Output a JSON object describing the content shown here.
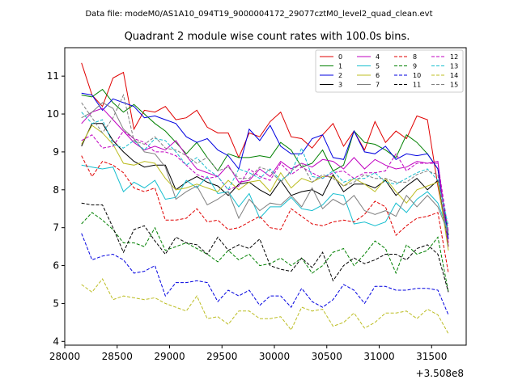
{
  "chart_data": {
    "type": "line",
    "suptitle": "Data file: modeM0/AS1A10_094T19_9000004172_29077cztM0_level2_quad_clean.evt",
    "title": "Quadrant 2 module wise count rates with 100.0s bins.",
    "xlabel": "",
    "ylabel": "",
    "x_offset_label": "+3.508e8",
    "xlim": [
      28000,
      31830
    ],
    "ylim": [
      3.9,
      11.75
    ],
    "xticks": [
      28000,
      28500,
      29000,
      29500,
      30000,
      30500,
      31000,
      31500
    ],
    "xtick_labels": [
      "28000",
      "28500",
      "29000",
      "29500",
      "30000",
      "30500",
      "31000",
      "31500"
    ],
    "yticks": [
      4,
      5,
      6,
      7,
      8,
      9,
      10,
      11
    ],
    "ytick_labels": [
      "4",
      "5",
      "6",
      "7",
      "8",
      "9",
      "10",
      "11"
    ],
    "legend_position": "top-right",
    "x": [
      28160,
      28260,
      28360,
      28460,
      28560,
      28660,
      28760,
      28860,
      28960,
      29060,
      29160,
      29260,
      29360,
      29460,
      29560,
      29660,
      29760,
      29860,
      29960,
      30060,
      30160,
      30260,
      30360,
      30460,
      30560,
      30660,
      30760,
      30860,
      30960,
      31060,
      31160,
      31260,
      31360,
      31460,
      31560,
      31660
    ],
    "series": [
      {
        "name": "0",
        "color": "#e00000",
        "dash": "solid",
        "values": [
          11.35,
          10.5,
          10.2,
          10.95,
          11.1,
          9.6,
          10.1,
          10.05,
          10.2,
          9.85,
          9.9,
          10.1,
          9.65,
          9.5,
          9.5,
          8.85,
          9.5,
          9.4,
          9.8,
          10.05,
          9.4,
          9.35,
          9.1,
          9.45,
          9.75,
          9.15,
          9.55,
          9.05,
          9.8,
          9.25,
          9.55,
          9.35,
          9.95,
          9.85,
          8.1,
          6.6
        ]
      },
      {
        "name": "1",
        "color": "#008000",
        "dash": "solid",
        "values": [
          10.5,
          10.45,
          10.65,
          10.3,
          10.05,
          10.25,
          10.0,
          9.75,
          9.55,
          9.25,
          8.95,
          9.25,
          8.85,
          8.5,
          8.95,
          8.85,
          8.85,
          8.9,
          8.85,
          9.25,
          9.05,
          8.6,
          8.7,
          9.05,
          8.5,
          8.65,
          9.55,
          9.25,
          9.2,
          9.05,
          8.85,
          9.45,
          9.25,
          8.95,
          8.55,
          6.8
        ]
      },
      {
        "name": "2",
        "color": "#0000e0",
        "dash": "solid",
        "values": [
          10.55,
          10.5,
          10.1,
          10.4,
          10.3,
          10.2,
          9.9,
          9.95,
          9.85,
          9.75,
          9.4,
          9.25,
          9.35,
          9.05,
          8.9,
          8.55,
          9.6,
          9.3,
          9.7,
          9.15,
          8.95,
          8.95,
          9.35,
          9.45,
          8.85,
          8.8,
          9.55,
          9.0,
          8.95,
          9.15,
          8.8,
          8.95,
          8.9,
          8.95,
          8.55,
          6.7
        ]
      },
      {
        "name": "3",
        "color": "#000000",
        "dash": "solid",
        "values": [
          9.15,
          9.75,
          9.75,
          9.3,
          9.0,
          8.75,
          8.6,
          8.65,
          8.65,
          8.0,
          8.2,
          8.35,
          8.2,
          8.1,
          7.85,
          8.15,
          8.2,
          8.0,
          7.85,
          8.25,
          7.85,
          7.95,
          8.0,
          7.85,
          8.4,
          7.95,
          8.15,
          8.15,
          8.05,
          8.25,
          7.85,
          8.1,
          8.3,
          8.0,
          8.25,
          6.5
        ]
      },
      {
        "name": "4",
        "color": "#c000c0",
        "dash": "solid",
        "values": [
          9.75,
          10.05,
          10.15,
          9.85,
          9.55,
          9.25,
          9.05,
          9.15,
          9.05,
          9.3,
          8.9,
          8.55,
          8.45,
          8.35,
          8.65,
          8.2,
          8.25,
          8.55,
          8.35,
          8.75,
          8.55,
          8.7,
          8.6,
          8.8,
          8.75,
          8.55,
          8.85,
          8.55,
          8.8,
          8.65,
          8.55,
          8.6,
          8.75,
          8.7,
          8.75,
          6.5
        ]
      },
      {
        "name": "5",
        "color": "#17becf",
        "dash": "solid",
        "values": [
          8.65,
          8.6,
          8.55,
          8.6,
          7.95,
          8.2,
          8.05,
          8.25,
          7.75,
          7.8,
          8.25,
          8.05,
          8.35,
          7.9,
          7.95,
          7.55,
          7.9,
          7.25,
          7.55,
          7.55,
          7.8,
          7.5,
          7.45,
          7.6,
          7.9,
          7.85,
          7.1,
          7.15,
          7.05,
          7.15,
          7.65,
          7.4,
          7.75,
          7.95,
          7.65,
          6.9
        ]
      },
      {
        "name": "6",
        "color": "#bcbd22",
        "dash": "solid",
        "values": [
          9.2,
          9.7,
          9.5,
          9.2,
          8.7,
          8.65,
          8.75,
          8.7,
          8.3,
          8.0,
          8.05,
          8.15,
          8.05,
          7.95,
          8.25,
          8.0,
          8.2,
          8.25,
          7.95,
          8.45,
          8.05,
          8.3,
          8.2,
          8.35,
          8.35,
          8.1,
          8.3,
          8.15,
          7.95,
          8.3,
          7.95,
          7.65,
          8.0,
          8.1,
          8.2,
          6.4
        ]
      },
      {
        "name": "7",
        "color": "#7f7f7f",
        "dash": "solid",
        "values": [
          9.9,
          10.05,
          10.3,
          10.15,
          9.6,
          9.35,
          9.0,
          8.95,
          8.6,
          7.75,
          7.95,
          8.1,
          7.6,
          7.75,
          7.95,
          7.25,
          7.75,
          7.45,
          7.65,
          7.6,
          7.85,
          7.55,
          8.05,
          7.5,
          7.75,
          7.6,
          7.85,
          7.45,
          7.35,
          7.45,
          7.3,
          7.85,
          7.55,
          7.85,
          7.55,
          6.85
        ]
      },
      {
        "name": "8",
        "color": "#e00000",
        "dash": "dashed",
        "values": [
          8.9,
          8.35,
          8.75,
          8.65,
          8.45,
          8.05,
          7.95,
          8.05,
          7.2,
          7.2,
          7.25,
          7.5,
          7.15,
          7.2,
          6.95,
          7.0,
          7.15,
          7.3,
          7.0,
          6.95,
          7.5,
          7.3,
          7.1,
          7.05,
          7.15,
          7.2,
          7.15,
          7.35,
          7.7,
          7.55,
          6.8,
          7.05,
          7.25,
          7.3,
          7.4,
          5.8
        ]
      },
      {
        "name": "9",
        "color": "#008000",
        "dash": "dashed",
        "values": [
          7.1,
          7.4,
          7.2,
          6.95,
          6.6,
          6.6,
          6.5,
          7.0,
          6.4,
          6.5,
          6.6,
          6.45,
          6.3,
          6.1,
          6.4,
          6.15,
          6.3,
          6.0,
          6.05,
          6.2,
          6.0,
          6.2,
          5.8,
          6.0,
          6.35,
          6.45,
          6.0,
          6.3,
          6.65,
          6.45,
          5.8,
          6.55,
          6.3,
          6.4,
          6.75,
          5.3
        ]
      },
      {
        "name": "10",
        "color": "#0000e0",
        "dash": "dashed",
        "values": [
          6.85,
          6.15,
          6.25,
          6.3,
          6.15,
          5.8,
          5.85,
          6.0,
          5.2,
          5.55,
          5.55,
          5.6,
          5.55,
          5.05,
          5.35,
          5.2,
          5.35,
          4.95,
          5.2,
          5.2,
          4.9,
          5.4,
          5.05,
          4.9,
          5.1,
          5.5,
          5.35,
          5.0,
          5.45,
          5.45,
          5.35,
          5.35,
          5.4,
          5.4,
          5.35,
          4.7
        ]
      },
      {
        "name": "11",
        "color": "#000000",
        "dash": "dashed",
        "values": [
          7.65,
          7.6,
          7.6,
          7.0,
          6.35,
          6.95,
          7.05,
          6.65,
          6.3,
          6.75,
          6.6,
          6.55,
          6.3,
          6.75,
          6.4,
          6.55,
          6.45,
          6.7,
          6.0,
          5.9,
          5.85,
          6.2,
          5.95,
          6.35,
          5.6,
          6.0,
          6.2,
          6.05,
          6.15,
          6.3,
          6.3,
          6.15,
          6.45,
          6.55,
          6.3,
          5.3
        ]
      },
      {
        "name": "12",
        "color": "#c000c0",
        "dash": "dashed",
        "values": [
          9.3,
          9.45,
          9.1,
          9.15,
          9.55,
          9.35,
          9.25,
          9.0,
          9.0,
          8.9,
          8.65,
          8.4,
          8.3,
          8.35,
          8.0,
          8.1,
          8.55,
          8.35,
          8.25,
          8.7,
          8.4,
          8.6,
          8.45,
          8.3,
          8.45,
          8.5,
          8.3,
          8.45,
          8.45,
          8.5,
          8.95,
          8.5,
          8.7,
          8.7,
          8.7,
          6.9
        ]
      },
      {
        "name": "13",
        "color": "#17becf",
        "dash": "dashed",
        "values": [
          10.05,
          9.75,
          9.85,
          9.2,
          9.1,
          9.3,
          9.05,
          9.35,
          9.3,
          9.0,
          8.65,
          8.85,
          8.55,
          8.35,
          8.0,
          8.55,
          8.45,
          8.3,
          8.55,
          8.25,
          8.45,
          9.1,
          8.35,
          8.3,
          8.5,
          8.2,
          8.3,
          8.3,
          8.45,
          8.2,
          8.15,
          8.3,
          8.45,
          8.55,
          8.25,
          7.05
        ]
      },
      {
        "name": "14",
        "color": "#bcbd22",
        "dash": "dashed",
        "values": [
          5.5,
          5.3,
          5.65,
          5.1,
          5.2,
          5.15,
          5.1,
          5.15,
          5.0,
          4.9,
          4.8,
          5.2,
          4.6,
          4.65,
          4.45,
          4.8,
          4.8,
          4.6,
          4.6,
          4.65,
          4.3,
          4.9,
          4.8,
          4.85,
          4.4,
          4.5,
          4.75,
          4.35,
          4.5,
          4.75,
          4.75,
          4.8,
          4.6,
          4.85,
          4.7,
          4.2
        ]
      },
      {
        "name": "15",
        "color": "#7f7f7f",
        "dash": "dashed",
        "values": [
          10.3,
          9.9,
          9.5,
          9.9,
          10.5,
          9.3,
          9.2,
          9.4,
          9.1,
          9.05,
          8.9,
          8.7,
          8.85,
          8.5,
          8.6,
          8.3,
          8.3,
          8.6,
          8.5,
          8.2,
          8.5,
          8.7,
          8.2,
          8.4,
          8.3,
          8.1,
          8.2,
          8.4,
          8.3,
          8.3,
          8.2,
          8.2,
          8.4,
          8.5,
          8.4,
          6.5
        ]
      }
    ]
  }
}
